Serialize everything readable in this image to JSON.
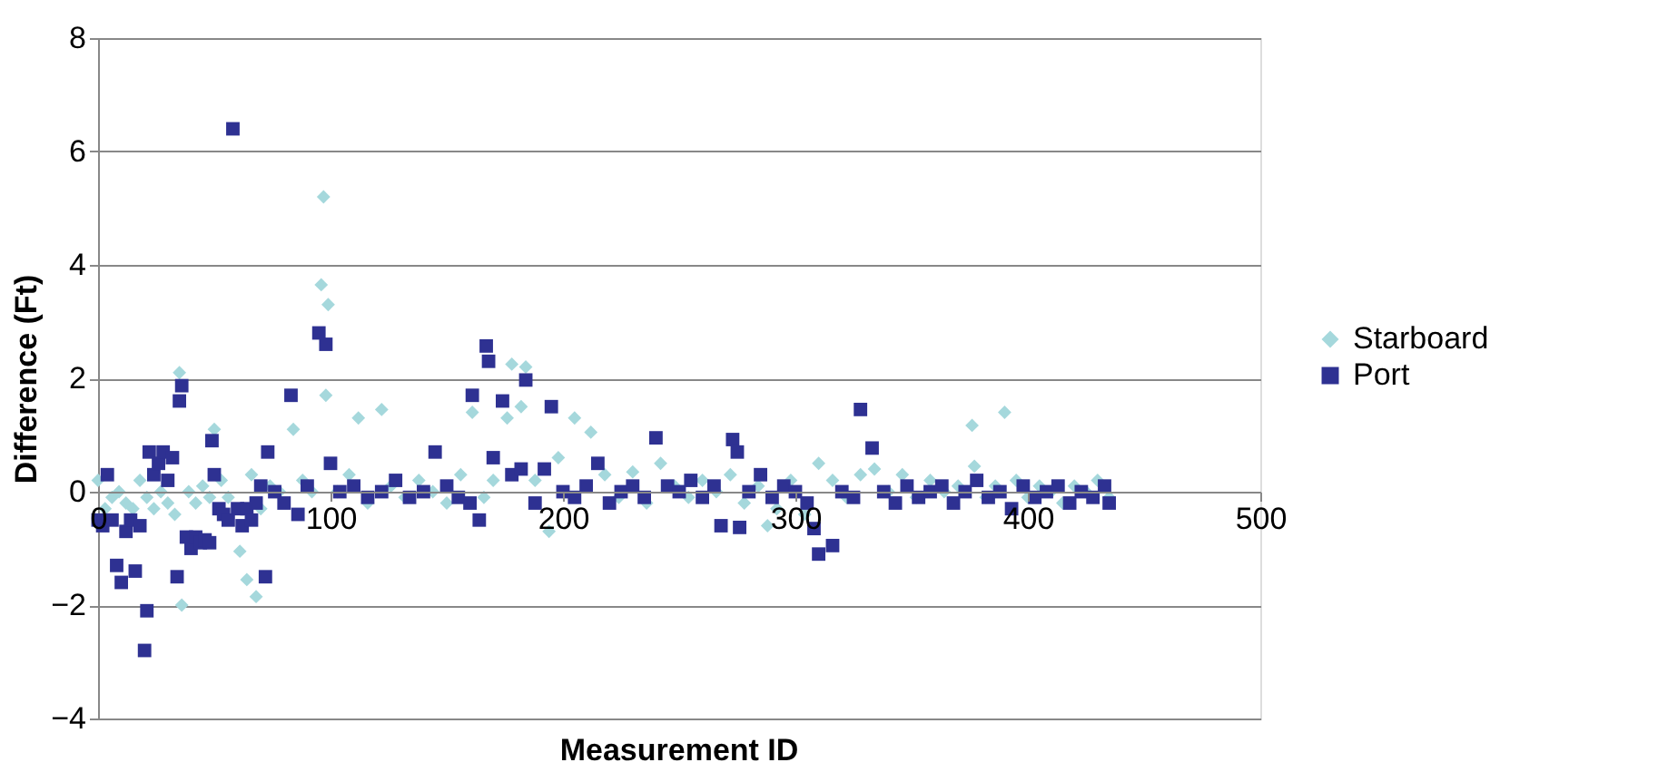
{
  "chart_data": {
    "type": "scatter",
    "xlabel": "Measurement ID",
    "ylabel": "Difference (Ft)",
    "xlim": [
      0,
      500
    ],
    "xticks": [
      0,
      100,
      200,
      300,
      400,
      500
    ],
    "ylim": [
      -4,
      8
    ],
    "yticks": [
      -4,
      -2,
      0,
      2,
      4,
      6,
      8
    ],
    "grid": "y",
    "legend": "right",
    "series": [
      {
        "name": "Starboard",
        "color": "#a5d8dc",
        "marker": "diamond",
        "x": [
          0,
          3,
          6,
          9,
          12,
          15,
          18,
          21,
          24,
          27,
          30,
          33,
          35,
          36,
          39,
          42,
          45,
          48,
          50,
          53,
          56,
          61,
          64,
          66,
          68,
          70,
          74,
          78,
          84,
          88,
          92,
          96,
          97,
          98,
          99,
          103,
          108,
          112,
          116,
          122,
          126,
          132,
          138,
          144,
          150,
          156,
          161,
          166,
          170,
          176,
          178,
          182,
          184,
          188,
          194,
          198,
          205,
          212,
          218,
          224,
          230,
          236,
          242,
          248,
          254,
          260,
          266,
          272,
          278,
          284,
          288,
          292,
          298,
          304,
          310,
          316,
          322,
          328,
          334,
          340,
          346,
          352,
          358,
          364,
          370,
          376,
          377,
          382,
          386,
          390,
          395,
          400,
          405,
          410,
          415,
          420,
          425,
          430,
          435
        ],
        "values": [
          0.2,
          -0.3,
          -0.1,
          0.0,
          -0.2,
          -0.3,
          0.2,
          -0.1,
          -0.3,
          0.0,
          -0.2,
          -0.4,
          2.1,
          -2.0,
          0.0,
          -0.2,
          0.1,
          -0.1,
          1.1,
          0.2,
          -0.1,
          -1.05,
          -1.55,
          0.3,
          -1.85,
          -0.3,
          0.1,
          0.0,
          1.1,
          0.2,
          0.0,
          3.65,
          5.2,
          1.7,
          3.3,
          0.0,
          0.3,
          1.3,
          -0.2,
          1.45,
          0.1,
          -0.1,
          0.2,
          0.0,
          -0.2,
          0.3,
          1.4,
          -0.1,
          0.2,
          1.3,
          2.25,
          1.5,
          2.2,
          0.2,
          -0.7,
          0.6,
          1.3,
          1.05,
          0.3,
          -0.1,
          0.35,
          -0.2,
          0.5,
          0.1,
          -0.1,
          0.2,
          0.0,
          0.3,
          -0.2,
          0.1,
          -0.6,
          -0.3,
          0.2,
          -0.4,
          0.5,
          0.2,
          -0.1,
          0.3,
          0.4,
          0.0,
          0.3,
          -0.1,
          0.2,
          0.0,
          0.1,
          1.17,
          0.45,
          -0.1,
          0.1,
          1.4,
          0.2,
          -0.1,
          0.1,
          0.0,
          -0.2,
          0.1,
          0.0,
          0.2,
          -0.1
        ]
      },
      {
        "name": "Port",
        "color": "#2e3192",
        "marker": "square",
        "x": [
          0,
          2,
          4,
          6,
          8,
          10,
          12,
          14,
          16,
          18,
          20,
          21,
          22,
          24,
          26,
          28,
          30,
          32,
          34,
          35,
          36,
          38,
          40,
          42,
          44,
          46,
          48,
          49,
          50,
          52,
          54,
          56,
          58,
          60,
          62,
          64,
          66,
          68,
          70,
          72,
          73,
          76,
          80,
          83,
          86,
          90,
          95,
          98,
          100,
          104,
          110,
          116,
          122,
          128,
          134,
          140,
          145,
          150,
          155,
          160,
          161,
          164,
          167,
          168,
          170,
          174,
          178,
          182,
          184,
          188,
          192,
          195,
          200,
          205,
          210,
          215,
          220,
          225,
          230,
          235,
          240,
          245,
          250,
          255,
          260,
          265,
          268,
          273,
          275,
          276,
          280,
          285,
          290,
          295,
          300,
          305,
          308,
          310,
          316,
          320,
          325,
          328,
          333,
          338,
          343,
          348,
          353,
          358,
          363,
          368,
          373,
          378,
          383,
          388,
          393,
          398,
          403,
          408,
          413,
          418,
          423,
          428,
          433,
          435
        ],
        "values": [
          -0.5,
          -0.6,
          0.3,
          -0.5,
          -1.3,
          -1.6,
          -0.7,
          -0.5,
          -1.4,
          -0.6,
          -2.8,
          -2.1,
          0.7,
          0.3,
          0.5,
          0.7,
          0.2,
          0.6,
          -1.5,
          1.6,
          1.87,
          -0.8,
          -1.0,
          -0.8,
          -0.9,
          -0.85,
          -0.9,
          0.9,
          0.3,
          -0.3,
          -0.4,
          -0.5,
          6.4,
          -0.3,
          -0.6,
          -0.3,
          -0.5,
          -0.2,
          0.1,
          -1.5,
          0.7,
          0.0,
          -0.2,
          1.7,
          -0.4,
          0.1,
          2.8,
          2.6,
          0.5,
          0.0,
          0.1,
          -0.1,
          0.0,
          0.2,
          -0.1,
          0.0,
          0.7,
          0.1,
          -0.1,
          -0.2,
          1.7,
          -0.5,
          2.57,
          2.3,
          0.6,
          1.6,
          0.3,
          0.4,
          1.97,
          -0.2,
          0.4,
          1.5,
          0.0,
          -0.1,
          0.1,
          0.5,
          -0.2,
          0.0,
          0.1,
          -0.1,
          0.95,
          0.1,
          0.0,
          0.2,
          -0.1,
          0.1,
          -0.6,
          0.92,
          0.7,
          -0.63,
          0.0,
          0.3,
          -0.1,
          0.1,
          0.0,
          -0.2,
          -0.65,
          -1.1,
          -0.95,
          0.0,
          -0.1,
          1.45,
          0.77,
          0.0,
          -0.2,
          0.1,
          -0.1,
          0.0,
          0.1,
          -0.2,
          0.0,
          0.2,
          -0.1,
          0.0,
          -0.3,
          0.1,
          -0.1,
          0.0,
          0.1,
          -0.2,
          0.0,
          -0.1,
          0.1,
          -0.2
        ]
      }
    ]
  }
}
